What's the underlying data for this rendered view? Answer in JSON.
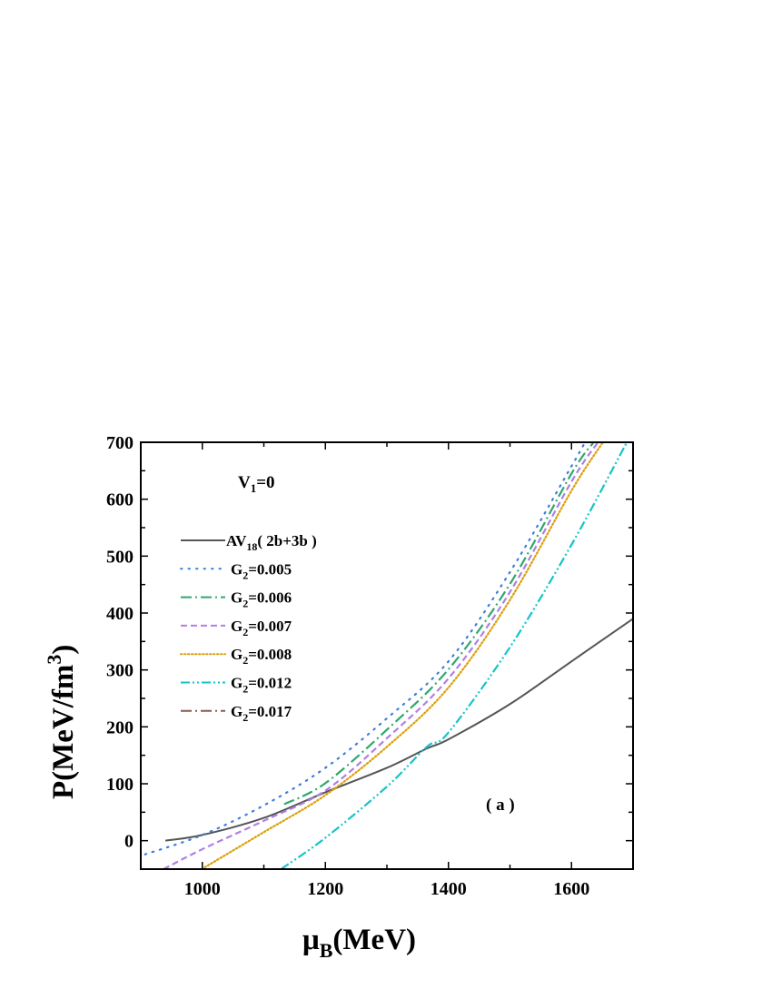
{
  "chart_data": {
    "type": "line",
    "xlabel": {
      "main": "μ",
      "sub": "B",
      "rest": "(MeV)"
    },
    "ylabel": {
      "main": "P(MeV/fm",
      "sup": "3",
      "rest": ")"
    },
    "xlim": [
      900,
      1700
    ],
    "ylim": [
      -50,
      700
    ],
    "xticks": [
      1000,
      1200,
      1400,
      1600
    ],
    "yticks": [
      0,
      100,
      200,
      300,
      400,
      500,
      600,
      700
    ],
    "grid": false,
    "legend_position": "top-left",
    "annotations": {
      "condition": {
        "main": "V",
        "sub": "1",
        "rest": "=0"
      },
      "panel": "( a )"
    },
    "series": [
      {
        "name": "AV18( 2b+3b )",
        "label_main": "AV",
        "label_sub": "18",
        "label_rest": "( 2b+3b )",
        "color": "#555555",
        "style": "solid",
        "x": [
          940,
          1000,
          1100,
          1200,
          1300,
          1365,
          1400,
          1500,
          1600,
          1700
        ],
        "y": [
          0,
          10,
          40,
          85,
          128,
          162,
          178,
          240,
          315,
          390
        ]
      },
      {
        "name": "G2=0.005",
        "label_main": "G",
        "label_sub": "2",
        "label_rest": "=0.005",
        "color": "#3b7ddd",
        "style": "dot",
        "x": [
          907,
          1000,
          1100,
          1200,
          1300,
          1400,
          1500,
          1600,
          1622
        ],
        "y": [
          -24,
          10,
          62,
          128,
          215,
          315,
          472,
          658,
          700
        ]
      },
      {
        "name": "G2=0.006",
        "label_main": "G",
        "label_sub": "2",
        "label_rest": "=0.006",
        "color": "#2ea86a",
        "style": "dashdot",
        "x": [
          1133,
          1200,
          1300,
          1400,
          1500,
          1600,
          1636
        ],
        "y": [
          64,
          101,
          195,
          301,
          451,
          645,
          700
        ]
      },
      {
        "name": "G2=0.007",
        "label_main": "G",
        "label_sub": "2",
        "label_rest": "=0.007",
        "color": "#b07fe6",
        "style": "dash",
        "x": [
          937,
          1000,
          1100,
          1200,
          1300,
          1400,
          1500,
          1600,
          1643
        ],
        "y": [
          -50,
          -15,
          35,
          88,
          180,
          285,
          437,
          631,
          700
        ]
      },
      {
        "name": "G2=0.008",
        "label_main": "G",
        "label_sub": "2",
        "label_rest": "=0.008",
        "color": "#dc9f0a",
        "style": "shortdot",
        "x": [
          999,
          1100,
          1200,
          1300,
          1400,
          1500,
          1600,
          1651
        ],
        "y": [
          -50,
          15,
          80,
          165,
          269,
          423,
          615,
          700
        ]
      },
      {
        "name": "G2=0.012",
        "label_main": "G",
        "label_sub": "2",
        "label_rest": "=0.012",
        "color": "#14c4c8",
        "style": "dashdotdot",
        "x": [
          1128,
          1200,
          1300,
          1365,
          1400,
          1500,
          1600,
          1690
        ],
        "y": [
          -50,
          5,
          95,
          165,
          190,
          340,
          520,
          700
        ]
      },
      {
        "name": "G2=0.017",
        "label_main": "G",
        "label_sub": "2",
        "label_rest": "=0.017",
        "color": "#8b5a50",
        "style": "dashdot",
        "x": [],
        "y": []
      }
    ]
  }
}
